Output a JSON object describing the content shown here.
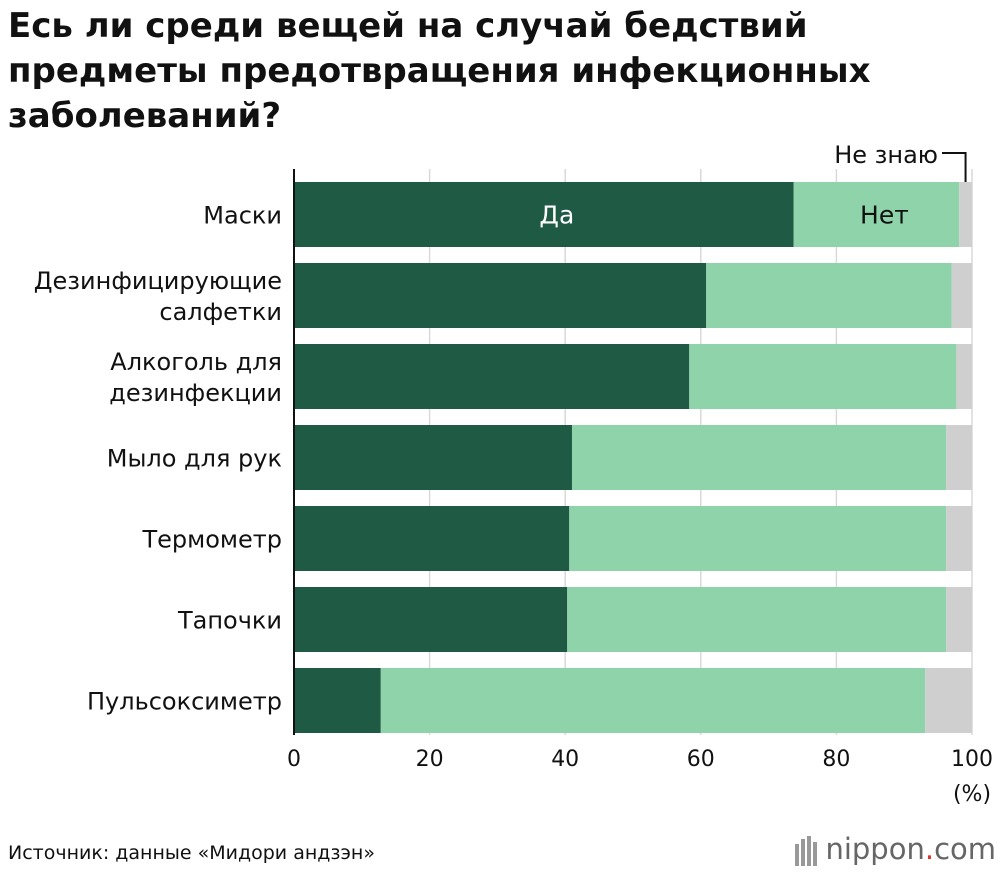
{
  "title": "Есь ли среди вещей на случай бедствий предметы предотвращения инфекционных заболеваний?",
  "source": "Источник: данные «Мидори андзэн»",
  "logo": {
    "name": "nippon",
    "dot": ".",
    "tld": "com"
  },
  "colors": {
    "yes": "#1f5a45",
    "no": "#8fd3aa",
    "dontknow": "#cfcfcf",
    "grid": "#d9d9d9"
  },
  "chart_data": {
    "type": "bar",
    "orientation": "horizontal",
    "stacked": true,
    "categories": [
      [
        "Маски"
      ],
      [
        "Дезинфицирующие",
        "салфетки"
      ],
      [
        "Алкоголь для",
        "дезинфекции"
      ],
      [
        "Мыло для рук"
      ],
      [
        "Термометр"
      ],
      [
        "Тапочки"
      ],
      [
        "Пульсоксиметр"
      ]
    ],
    "series": [
      {
        "name": "Да",
        "values": [
          73.7,
          60.8,
          58.3,
          41.0,
          40.6,
          40.3,
          12.8
        ]
      },
      {
        "name": "Нет",
        "values": [
          24.4,
          36.2,
          39.4,
          55.2,
          55.6,
          55.9,
          80.3
        ]
      },
      {
        "name": "Не знаю",
        "values": [
          1.9,
          3.0,
          2.3,
          3.8,
          3.8,
          3.8,
          6.9
        ]
      }
    ],
    "xlim": [
      0,
      100
    ],
    "xticks": [
      "0",
      "20",
      "40",
      "60",
      "80",
      "100"
    ],
    "xunit": "(%)",
    "grid": true,
    "legend": "inline"
  }
}
